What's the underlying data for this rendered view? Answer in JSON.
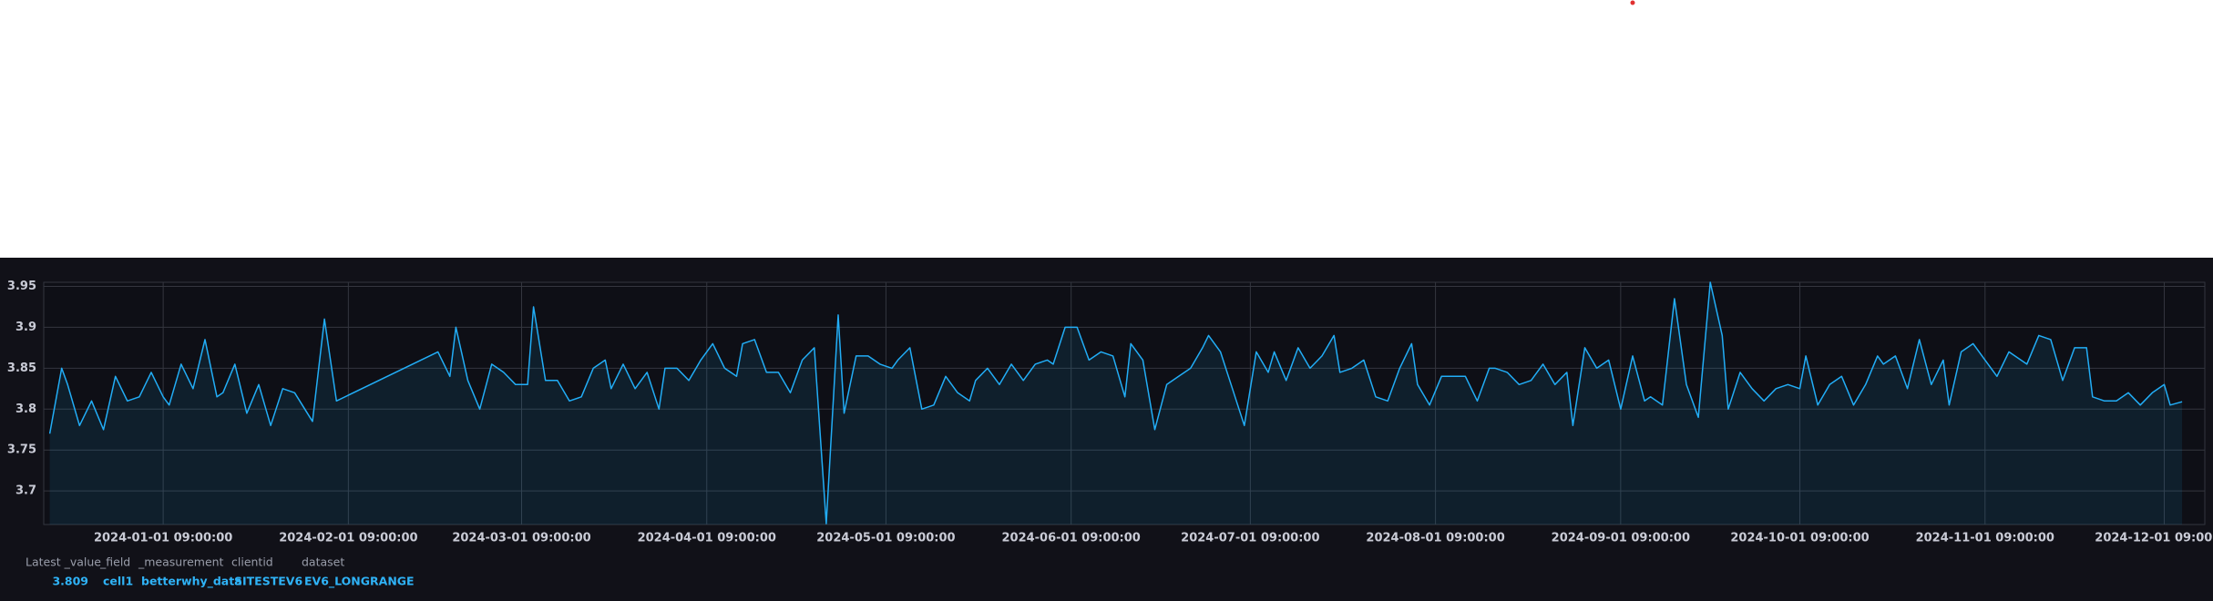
{
  "chart_data": {
    "type": "line",
    "x": [
      "2023-12-13 09:00:00",
      "2023-12-15 09:00:00",
      "2023-12-16 09:00:00",
      "2023-12-18 09:00:00",
      "2023-12-20 09:00:00",
      "2023-12-22 09:00:00",
      "2023-12-24 09:00:00",
      "2023-12-26 09:00:00",
      "2023-12-28 09:00:00",
      "2023-12-30 09:00:00",
      "2024-01-01 09:00:00",
      "2024-01-02 09:00:00",
      "2024-01-04 09:00:00",
      "2024-01-06 09:00:00",
      "2024-01-08 09:00:00",
      "2024-01-10 09:00:00",
      "2024-01-11 09:00:00",
      "2024-01-13 09:00:00",
      "2024-01-15 09:00:00",
      "2024-01-17 09:00:00",
      "2024-01-19 09:00:00",
      "2024-01-21 09:00:00",
      "2024-01-23 09:00:00",
      "2024-01-26 09:00:00",
      "2024-01-28 09:00:00",
      "2024-01-30 09:00:00",
      "2024-02-16 09:00:00",
      "2024-02-18 09:00:00",
      "2024-02-19 09:00:00",
      "2024-02-21 09:00:00",
      "2024-02-23 09:00:00",
      "2024-02-25 09:00:00",
      "2024-02-27 09:00:00",
      "2024-02-29 09:00:00",
      "2024-03-02 09:00:00",
      "2024-03-03 09:00:00",
      "2024-03-05 09:00:00",
      "2024-03-07 09:00:00",
      "2024-03-09 09:00:00",
      "2024-03-11 09:00:00",
      "2024-03-13 09:00:00",
      "2024-03-15 09:00:00",
      "2024-03-16 09:00:00",
      "2024-03-18 09:00:00",
      "2024-03-20 09:00:00",
      "2024-03-22 09:00:00",
      "2024-03-24 09:00:00",
      "2024-03-25 09:00:00",
      "2024-03-27 09:00:00",
      "2024-03-29 09:00:00",
      "2024-03-31 09:00:00",
      "2024-04-02 09:00:00",
      "2024-04-04 09:00:00",
      "2024-04-06 09:00:00",
      "2024-04-07 09:00:00",
      "2024-04-09 09:00:00",
      "2024-04-11 09:00:00",
      "2024-04-13 09:00:00",
      "2024-04-15 09:00:00",
      "2024-04-17 09:00:00",
      "2024-04-19 09:00:00",
      "2024-04-21 09:00:00",
      "2024-04-23 09:00:00",
      "2024-04-24 09:00:00",
      "2024-04-26 09:00:00",
      "2024-04-28 09:00:00",
      "2024-04-30 09:00:00",
      "2024-05-02 09:00:00",
      "2024-05-03 09:00:00",
      "2024-05-05 09:00:00",
      "2024-05-07 09:00:00",
      "2024-05-09 09:00:00",
      "2024-05-11 09:00:00",
      "2024-05-13 09:00:00",
      "2024-05-15 09:00:00",
      "2024-05-16 09:00:00",
      "2024-05-18 09:00:00",
      "2024-05-20 09:00:00",
      "2024-05-22 09:00:00",
      "2024-05-24 09:00:00",
      "2024-05-26 09:00:00",
      "2024-05-28 09:00:00",
      "2024-05-29 09:00:00",
      "2024-05-31 09:00:00",
      "2024-06-02 09:00:00",
      "2024-06-04 09:00:00",
      "2024-06-06 09:00:00",
      "2024-06-08 09:00:00",
      "2024-06-10 09:00:00",
      "2024-06-11 09:00:00",
      "2024-06-13 09:00:00",
      "2024-06-15 09:00:00",
      "2024-06-17 09:00:00",
      "2024-06-19 09:00:00",
      "2024-06-21 09:00:00",
      "2024-06-23 09:00:00",
      "2024-06-24 09:00:00",
      "2024-06-26 09:00:00",
      "2024-06-28 09:00:00",
      "2024-06-30 09:00:00",
      "2024-07-02 09:00:00",
      "2024-07-04 09:00:00",
      "2024-07-05 09:00:00",
      "2024-07-07 09:00:00",
      "2024-07-09 09:00:00",
      "2024-07-11 09:00:00",
      "2024-07-13 09:00:00",
      "2024-07-15 09:00:00",
      "2024-07-16 09:00:00",
      "2024-07-18 09:00:00",
      "2024-07-20 09:00:00",
      "2024-07-22 09:00:00",
      "2024-07-24 09:00:00",
      "2024-07-26 09:00:00",
      "2024-07-28 09:00:00",
      "2024-07-29 09:00:00",
      "2024-07-31 09:00:00",
      "2024-08-02 09:00:00",
      "2024-08-04 09:00:00",
      "2024-08-06 09:00:00",
      "2024-08-08 09:00:00",
      "2024-08-10 09:00:00",
      "2024-08-11 09:00:00",
      "2024-08-13 09:00:00",
      "2024-08-15 09:00:00",
      "2024-08-17 09:00:00",
      "2024-08-19 09:00:00",
      "2024-08-21 09:00:00",
      "2024-08-23 09:00:00",
      "2024-08-24 09:00:00",
      "2024-08-26 09:00:00",
      "2024-08-28 09:00:00",
      "2024-08-30 09:00:00",
      "2024-09-01 09:00:00",
      "2024-09-03 09:00:00",
      "2024-09-05 09:00:00",
      "2024-09-06 09:00:00",
      "2024-09-08 09:00:00",
      "2024-09-10 09:00:00",
      "2024-09-12 09:00:00",
      "2024-09-14 09:00:00",
      "2024-09-16 09:00:00",
      "2024-09-18 09:00:00",
      "2024-09-19 09:00:00",
      "2024-09-21 09:00:00",
      "2024-09-23 09:00:00",
      "2024-09-25 09:00:00",
      "2024-09-27 09:00:00",
      "2024-09-29 09:00:00",
      "2024-10-01 09:00:00",
      "2024-10-02 09:00:00",
      "2024-10-04 09:00:00",
      "2024-10-06 09:00:00",
      "2024-10-08 09:00:00",
      "2024-10-10 09:00:00",
      "2024-10-12 09:00:00",
      "2024-10-14 09:00:00",
      "2024-10-15 09:00:00",
      "2024-10-17 09:00:00",
      "2024-10-19 09:00:00",
      "2024-10-21 09:00:00",
      "2024-10-23 09:00:00",
      "2024-10-25 09:00:00",
      "2024-10-26 09:00:00",
      "2024-10-28 09:00:00",
      "2024-10-30 09:00:00",
      "2024-11-01 09:00:00",
      "2024-11-03 09:00:00",
      "2024-11-05 09:00:00",
      "2024-11-06 09:00:00",
      "2024-11-08 09:00:00",
      "2024-11-10 09:00:00",
      "2024-11-12 09:00:00",
      "2024-11-14 09:00:00",
      "2024-11-16 09:00:00",
      "2024-11-18 09:00:00",
      "2024-11-19 09:00:00",
      "2024-11-21 09:00:00",
      "2024-11-23 09:00:00",
      "2024-11-25 09:00:00",
      "2024-11-27 09:00:00",
      "2024-11-29 09:00:00",
      "2024-12-01 09:00:00",
      "2024-12-02 09:00:00",
      "2024-12-04 09:00:00"
    ],
    "values": [
      3.77,
      3.85,
      3.83,
      3.78,
      3.81,
      3.775,
      3.84,
      3.81,
      3.815,
      3.845,
      3.815,
      3.805,
      3.855,
      3.825,
      3.885,
      3.815,
      3.82,
      3.855,
      3.795,
      3.83,
      3.78,
      3.825,
      3.82,
      3.785,
      3.91,
      3.81,
      3.87,
      3.84,
      3.9,
      3.835,
      3.8,
      3.855,
      3.845,
      3.83,
      3.83,
      3.925,
      3.835,
      3.835,
      3.81,
      3.815,
      3.85,
      3.86,
      3.825,
      3.855,
      3.825,
      3.845,
      3.8,
      3.85,
      3.85,
      3.835,
      3.86,
      3.88,
      3.85,
      3.84,
      3.88,
      3.885,
      3.845,
      3.845,
      3.82,
      3.86,
      3.875,
      3.66,
      3.915,
      3.795,
      3.865,
      3.865,
      3.855,
      3.85,
      3.86,
      3.875,
      3.8,
      3.805,
      3.84,
      3.82,
      3.81,
      3.835,
      3.85,
      3.83,
      3.855,
      3.835,
      3.855,
      3.86,
      3.855,
      3.9,
      3.9,
      3.86,
      3.87,
      3.865,
      3.815,
      3.88,
      3.86,
      3.775,
      3.83,
      3.84,
      3.85,
      3.875,
      3.89,
      3.87,
      3.825,
      3.78,
      3.87,
      3.845,
      3.87,
      3.835,
      3.875,
      3.85,
      3.865,
      3.89,
      3.845,
      3.85,
      3.86,
      3.815,
      3.81,
      3.85,
      3.88,
      3.83,
      3.805,
      3.84,
      3.84,
      3.84,
      3.81,
      3.85,
      3.85,
      3.845,
      3.83,
      3.835,
      3.855,
      3.83,
      3.845,
      3.78,
      3.875,
      3.85,
      3.86,
      3.8,
      3.865,
      3.81,
      3.815,
      3.805,
      3.935,
      3.83,
      3.79,
      3.955,
      3.89,
      3.8,
      3.845,
      3.825,
      3.81,
      3.825,
      3.83,
      3.825,
      3.865,
      3.805,
      3.83,
      3.84,
      3.805,
      3.83,
      3.865,
      3.855,
      3.865,
      3.825,
      3.885,
      3.83,
      3.86,
      3.805,
      3.87,
      3.88,
      3.86,
      3.84,
      3.87,
      3.865,
      3.855,
      3.89,
      3.885,
      3.835,
      3.875,
      3.875,
      3.815,
      3.81,
      3.81,
      3.82,
      3.805,
      3.82,
      3.83,
      3.805,
      3.809
    ],
    "color": "#22adf6",
    "xlim": [
      "2023-12-12 09:00:00",
      "2024-12-08 04:00:00"
    ],
    "xticks": [
      "2024-01-01 09:00:00",
      "2024-02-01 09:00:00",
      "2024-03-01 09:00:00",
      "2024-04-01 09:00:00",
      "2024-05-01 09:00:00",
      "2024-06-01 09:00:00",
      "2024-07-01 09:00:00",
      "2024-08-01 09:00:00",
      "2024-09-01 09:00:00",
      "2024-10-01 09:00:00",
      "2024-11-01 09:00:00",
      "2024-12-01 09:00:00"
    ],
    "ylim": [
      3.659,
      3.955
    ],
    "yticks": [
      3.7,
      3.75,
      3.8,
      3.85,
      3.9,
      3.95
    ],
    "grid": true
  },
  "legend_table": {
    "headers": [
      "Latest _value",
      "_field",
      "_measurement",
      "clientid",
      "dataset"
    ],
    "values": [
      3.809,
      "cell1",
      "betterwhy_data",
      "SITESTEV6",
      "EV6_LONGRANGE"
    ]
  }
}
